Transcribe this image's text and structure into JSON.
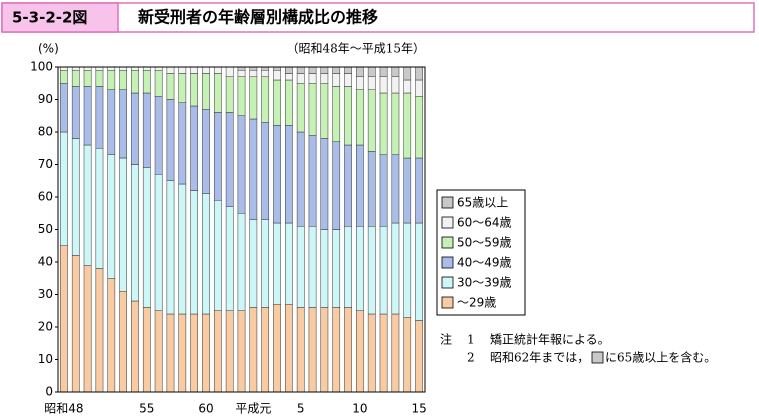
{
  "chart_data": {
    "type": "stacked_bar",
    "figure_label": "5-3-2-2図",
    "title": "新受刑者の年齢層別構成比の推移",
    "subtitle": "（昭和48年～平成15年）",
    "y_label": "(%)",
    "categories": [
      "昭和48",
      null,
      null,
      null,
      null,
      null,
      null,
      "55",
      null,
      null,
      null,
      null,
      "60",
      null,
      null,
      null,
      "平成元",
      null,
      null,
      null,
      "5",
      null,
      null,
      null,
      null,
      "10",
      null,
      null,
      null,
      null,
      "15"
    ],
    "series": [
      {
        "name": "～29歳",
        "color": "#f8cba2",
        "values": [
          45,
          42,
          39,
          38,
          35,
          31,
          28,
          26,
          25,
          24,
          24,
          24,
          24,
          25,
          25,
          25,
          26,
          26,
          27,
          27,
          26,
          26,
          26,
          26,
          26,
          25,
          24,
          24,
          24,
          23,
          22
        ]
      },
      {
        "name": "30～39歳",
        "color": "#cdf6f6",
        "values": [
          35,
          36,
          37,
          37,
          38,
          41,
          42,
          43,
          42,
          41,
          40,
          38,
          37,
          34,
          32,
          30,
          27,
          27,
          25,
          25,
          25,
          25,
          24,
          24,
          25,
          26,
          27,
          27,
          28,
          29,
          30
        ]
      },
      {
        "name": "40～49歳",
        "color": "#aabde9",
        "values": [
          15,
          16,
          18,
          19,
          20,
          21,
          22,
          23,
          24,
          25,
          25,
          26,
          26,
          27,
          29,
          30,
          31,
          30,
          30,
          30,
          29,
          28,
          28,
          27,
          25,
          25,
          23,
          22,
          21,
          20,
          20
        ]
      },
      {
        "name": "50～59歳",
        "color": "#c6f1b5",
        "values": [
          4,
          5,
          5,
          5,
          6,
          6,
          7,
          7,
          8,
          8,
          9,
          10,
          11,
          12,
          11,
          12,
          13,
          14,
          14,
          14,
          15,
          16,
          17,
          17,
          18,
          17,
          19,
          19,
          19,
          20,
          19
        ]
      },
      {
        "name": "60～64歳",
        "color": "#f2f2f2",
        "values": [
          1,
          1,
          1,
          1,
          1,
          1,
          1,
          1,
          1,
          2,
          2,
          2,
          2,
          2,
          3,
          2,
          2,
          2,
          3,
          2,
          3,
          3,
          3,
          4,
          4,
          4,
          4,
          5,
          5,
          4,
          5
        ]
      },
      {
        "name": "65歳以上",
        "color": "#c9c9c9",
        "values": [
          null,
          null,
          null,
          null,
          null,
          null,
          null,
          null,
          null,
          null,
          null,
          null,
          null,
          null,
          null,
          1,
          1,
          1,
          1,
          2,
          2,
          2,
          2,
          2,
          2,
          3,
          3,
          3,
          3,
          4,
          4
        ]
      }
    ],
    "ylim": [
      0,
      100
    ],
    "yticks": [
      0,
      10,
      20,
      30,
      40,
      50,
      60,
      70,
      80,
      90,
      100
    ],
    "notes": [
      "注",
      "1",
      "矯正統計年報による。",
      "2",
      "昭和62年までは，",
      "に65歳以上を含む。"
    ]
  }
}
